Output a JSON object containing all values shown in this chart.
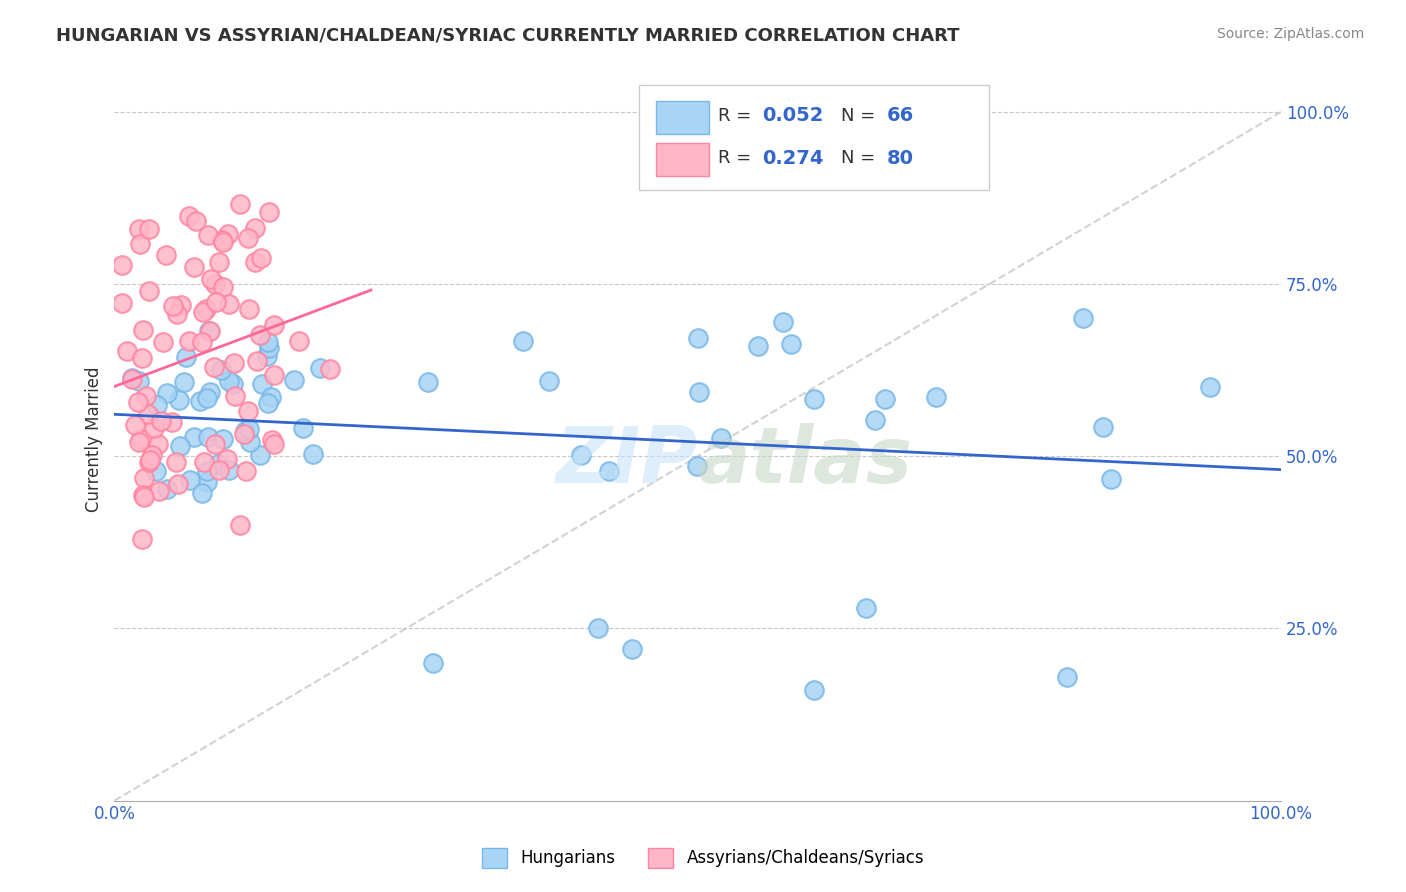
{
  "title": "HUNGARIAN VS ASSYRIAN/CHALDEAN/SYRIAC CURRENTLY MARRIED CORRELATION CHART",
  "source": "Source: ZipAtlas.com",
  "ylabel_left": "Currently Married",
  "xlim": [
    0.0,
    1.0
  ],
  "ylim": [
    0.0,
    1.05
  ],
  "color_blue_fill": "#A8D4F5",
  "color_blue_edge": "#7AB8E8",
  "color_pink_fill": "#FFB6C8",
  "color_pink_edge": "#FF85A0",
  "color_blue_line": "#3366CC",
  "color_pink_line": "#FF6699",
  "color_diag": "#C0C0C0",
  "color_grid": "#C8C8C8",
  "background_color": "#FFFFFF",
  "watermark_zip_color": "#C8E4F8",
  "watermark_atlas_color": "#C8D8C8"
}
